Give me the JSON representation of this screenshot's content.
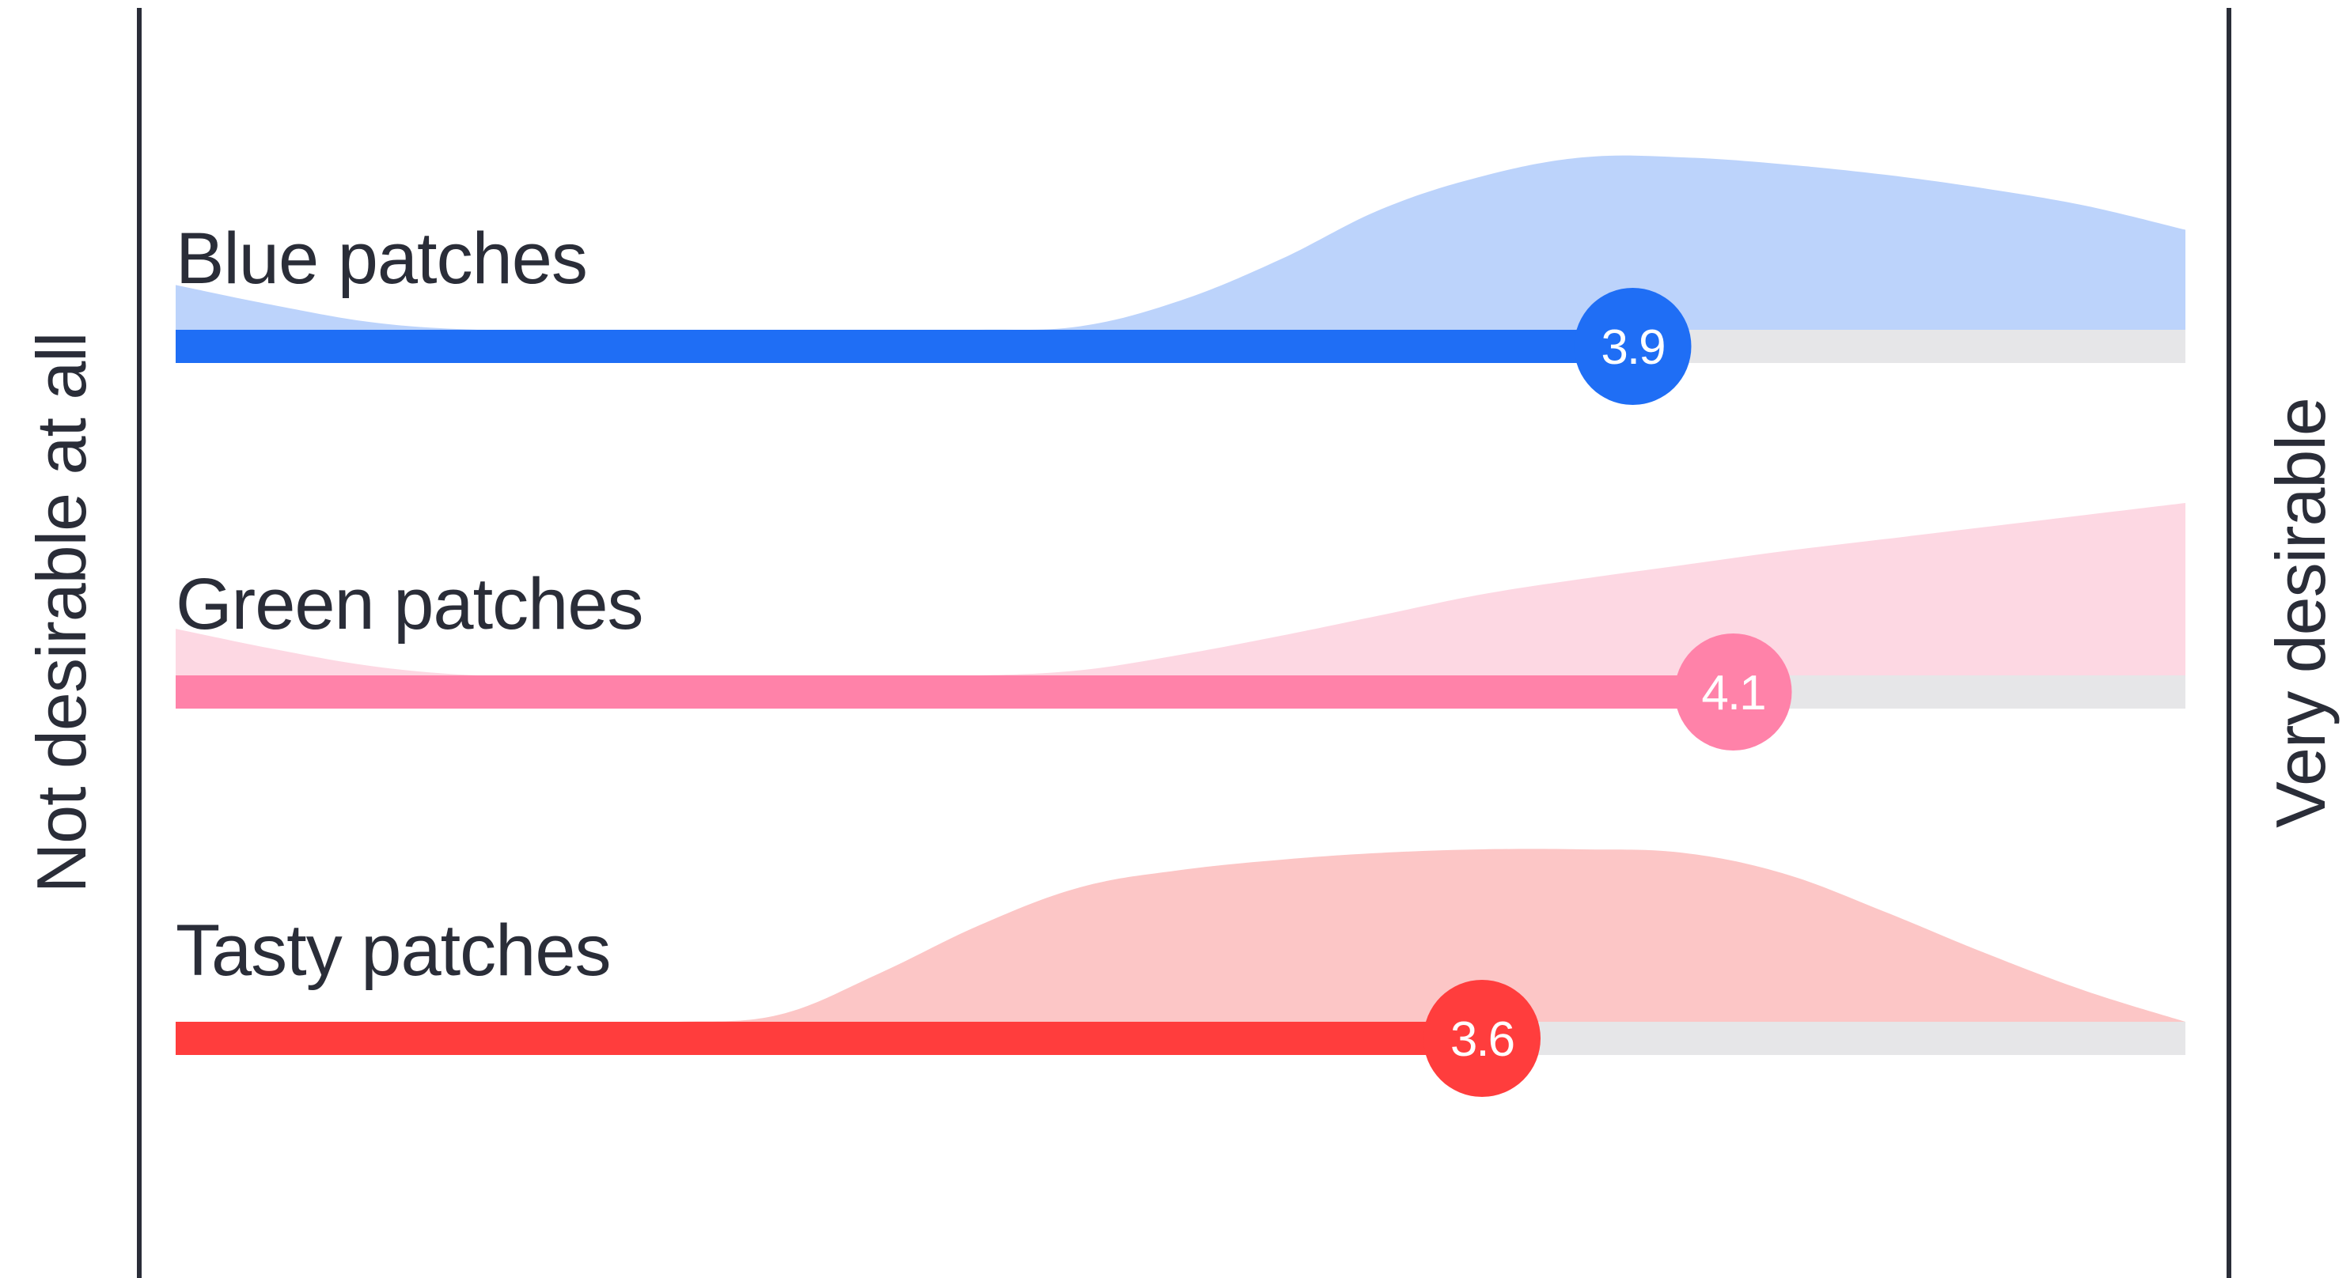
{
  "chart_data": {
    "type": "area",
    "xlim": [
      1,
      5
    ],
    "x_min_label": "Not desirable at all",
    "x_max_label": "Very desirable",
    "grid": false,
    "legend": "none",
    "series": [
      {
        "name": "Blue patches",
        "mean": 3.9,
        "mean_label": "3.9",
        "bar_color": "#1f6ef5",
        "area_color": "#bcd3fb",
        "distribution": {
          "x": [
            1.0,
            1.2,
            1.4,
            1.6,
            1.8,
            2.0,
            2.2,
            2.4,
            2.6,
            2.8,
            3.0,
            3.2,
            3.4,
            3.6,
            3.8,
            4.0,
            4.2,
            4.4,
            4.6,
            4.8,
            5.0
          ],
          "y": [
            0.26,
            0.14,
            0.04,
            0.0,
            0.0,
            0.0,
            0.0,
            0.0,
            0.0,
            0.02,
            0.17,
            0.41,
            0.7,
            0.89,
            1.0,
            1.0,
            0.96,
            0.9,
            0.82,
            0.72,
            0.58
          ]
        }
      },
      {
        "name": "Green patches",
        "mean": 4.1,
        "mean_label": "4.1",
        "bar_color": "#ff82a9",
        "area_color": "#fdd8e3",
        "distribution": {
          "x": [
            1.0,
            1.2,
            1.4,
            1.6,
            1.8,
            2.0,
            2.2,
            2.4,
            2.6,
            2.8,
            3.0,
            3.2,
            3.4,
            3.6,
            3.8,
            4.0,
            4.2,
            4.4,
            4.6,
            4.8,
            5.0
          ],
          "y": [
            0.27,
            0.15,
            0.05,
            0.0,
            0.0,
            0.0,
            0.0,
            0.0,
            0.0,
            0.03,
            0.12,
            0.23,
            0.35,
            0.47,
            0.56,
            0.64,
            0.72,
            0.79,
            0.86,
            0.93,
            1.0
          ]
        }
      },
      {
        "name": "Tasty patches",
        "mean": 3.6,
        "mean_label": "3.6",
        "bar_color": "#ff3d3d",
        "area_color": "#fcc6c6",
        "distribution": {
          "x": [
            1.0,
            1.2,
            1.4,
            1.6,
            1.8,
            2.0,
            2.2,
            2.4,
            2.6,
            2.8,
            3.0,
            3.2,
            3.4,
            3.6,
            3.8,
            4.0,
            4.2,
            4.4,
            4.6,
            4.8,
            5.0
          ],
          "y": [
            0.0,
            0.0,
            0.0,
            0.0,
            0.0,
            0.0,
            0.04,
            0.28,
            0.56,
            0.78,
            0.88,
            0.94,
            0.98,
            1.0,
            1.0,
            0.98,
            0.86,
            0.64,
            0.4,
            0.18,
            0.0
          ]
        }
      }
    ]
  },
  "colors": {
    "axis_line": "#2a2d38",
    "track": "#e6e6e8",
    "text": "#2a2d38",
    "knob_text": "#ffffff"
  }
}
